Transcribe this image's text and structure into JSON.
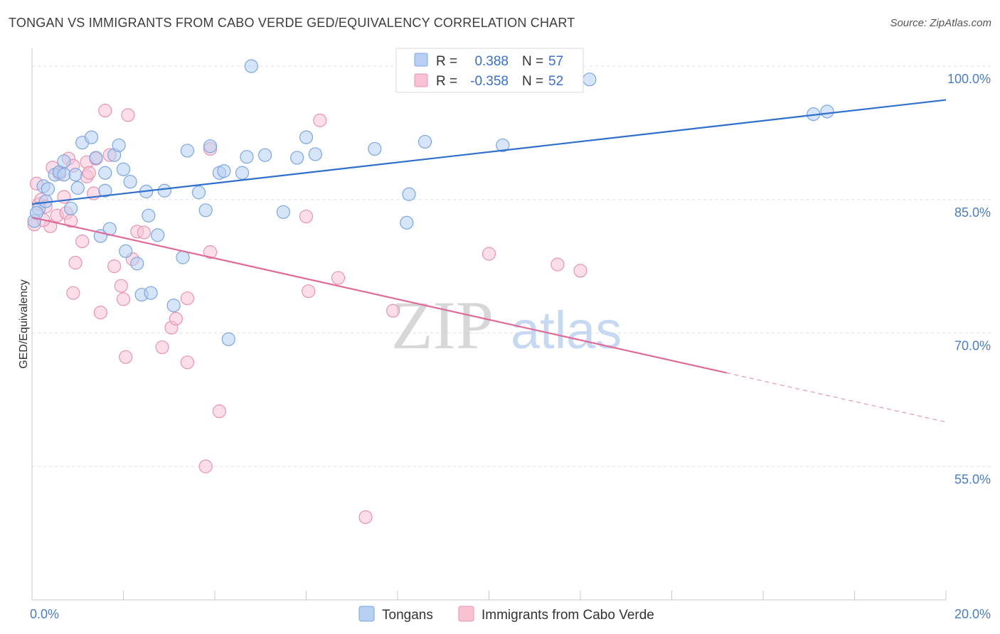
{
  "title": "TONGAN VS IMMIGRANTS FROM CABO VERDE GED/EQUIVALENCY CORRELATION CHART",
  "source": "Source: ZipAtlas.com",
  "watermark": {
    "zip": "ZIP",
    "atlas": "atlas"
  },
  "colors": {
    "blue_fill": "#b7d0f3",
    "blue_stroke": "#7aa6e3",
    "blue_line": "#2f6fcd",
    "pink_fill": "#f8c2d3",
    "pink_stroke": "#ea93b0",
    "pink_line": "#e06a98",
    "grid": "#e3e3e3",
    "tick_text": "#4a7cc9"
  },
  "stats_legend": [
    {
      "series": "Tongans",
      "r_label": "R =",
      "r_value": "0.388",
      "n_label": "N =",
      "n_value": "57"
    },
    {
      "series": "Immigrants from Cabo Verde",
      "r_label": "R =",
      "r_value": "-0.358",
      "n_label": "N =",
      "n_value": "52"
    }
  ],
  "chart_data": {
    "type": "scatter",
    "xlabel": "",
    "ylabel": "GED/Equivalency",
    "xlim": [
      0,
      20
    ],
    "ylim": [
      40,
      102
    ],
    "x_tick_labels": [
      {
        "value": 0,
        "label": "0.0%"
      },
      {
        "value": 20,
        "label": "20.0%"
      }
    ],
    "y_tick_labels": [
      {
        "value": 100,
        "label": "100.0%"
      },
      {
        "value": 85,
        "label": "85.0%"
      },
      {
        "value": 70,
        "label": "70.0%"
      },
      {
        "value": 55,
        "label": "55.0%"
      }
    ],
    "y_gridlines": [
      100,
      85,
      70,
      55
    ],
    "legend_position": "bottom-center",
    "series": [
      {
        "name": "Tongans",
        "color": "#b7d0f3",
        "trendline": {
          "x": [
            0,
            20
          ],
          "y": [
            84.5,
            96.2
          ],
          "dashed_from": null
        },
        "points": [
          [
            0.05,
            82.6
          ],
          [
            0.15,
            84.0
          ],
          [
            0.25,
            86.5
          ],
          [
            0.3,
            84.8
          ],
          [
            0.35,
            86.2
          ],
          [
            0.5,
            87.8
          ],
          [
            0.6,
            88.1
          ],
          [
            0.7,
            89.3
          ],
          [
            0.7,
            87.8
          ],
          [
            0.85,
            84.0
          ],
          [
            0.95,
            87.8
          ],
          [
            1.0,
            86.3
          ],
          [
            1.1,
            91.4
          ],
          [
            1.3,
            92.0
          ],
          [
            1.4,
            89.7
          ],
          [
            1.5,
            80.9
          ],
          [
            1.6,
            86.0
          ],
          [
            1.6,
            88.0
          ],
          [
            1.7,
            81.7
          ],
          [
            1.8,
            90.0
          ],
          [
            1.9,
            91.1
          ],
          [
            2.0,
            88.4
          ],
          [
            2.05,
            79.2
          ],
          [
            2.15,
            87.0
          ],
          [
            2.3,
            77.8
          ],
          [
            2.4,
            74.3
          ],
          [
            2.5,
            85.9
          ],
          [
            2.55,
            83.2
          ],
          [
            2.6,
            74.5
          ],
          [
            2.75,
            81.0
          ],
          [
            2.9,
            86.0
          ],
          [
            3.1,
            73.1
          ],
          [
            3.3,
            78.5
          ],
          [
            3.4,
            90.5
          ],
          [
            3.65,
            85.8
          ],
          [
            3.8,
            83.8
          ],
          [
            3.9,
            91.0
          ],
          [
            4.1,
            88.0
          ],
          [
            4.2,
            88.2
          ],
          [
            4.3,
            69.3
          ],
          [
            4.6,
            88.0
          ],
          [
            4.7,
            89.8
          ],
          [
            4.8,
            100.0
          ],
          [
            5.1,
            90.0
          ],
          [
            5.5,
            83.6
          ],
          [
            5.8,
            89.7
          ],
          [
            6.0,
            92.0
          ],
          [
            6.2,
            90.1
          ],
          [
            7.5,
            90.7
          ],
          [
            8.2,
            82.4
          ],
          [
            8.25,
            85.6
          ],
          [
            8.6,
            91.5
          ],
          [
            10.3,
            91.1
          ],
          [
            12.2,
            98.5
          ],
          [
            17.1,
            94.6
          ],
          [
            17.4,
            94.9
          ],
          [
            0.1,
            83.5
          ]
        ]
      },
      {
        "name": "Immigrants from Cabo Verde",
        "color": "#f8c2d3",
        "trendline": {
          "x": [
            0,
            20
          ],
          "y": [
            83.0,
            60.0
          ],
          "dashed_from": 15.2
        },
        "points": [
          [
            0.05,
            82.2
          ],
          [
            0.1,
            86.8
          ],
          [
            0.15,
            84.5
          ],
          [
            0.2,
            85.0
          ],
          [
            0.3,
            84.2
          ],
          [
            0.4,
            82.0
          ],
          [
            0.45,
            88.6
          ],
          [
            0.55,
            83.2
          ],
          [
            0.6,
            87.9
          ],
          [
            0.7,
            85.3
          ],
          [
            0.75,
            83.5
          ],
          [
            0.8,
            89.6
          ],
          [
            0.85,
            82.6
          ],
          [
            0.9,
            88.8
          ],
          [
            0.9,
            74.5
          ],
          [
            0.95,
            77.9
          ],
          [
            1.1,
            80.3
          ],
          [
            1.2,
            87.6
          ],
          [
            1.2,
            89.2
          ],
          [
            1.25,
            88.0
          ],
          [
            1.35,
            85.7
          ],
          [
            1.4,
            89.6
          ],
          [
            1.5,
            72.3
          ],
          [
            1.6,
            95.0
          ],
          [
            1.7,
            90.0
          ],
          [
            1.8,
            77.5
          ],
          [
            1.95,
            75.3
          ],
          [
            2.0,
            73.8
          ],
          [
            2.05,
            67.3
          ],
          [
            2.1,
            94.5
          ],
          [
            2.2,
            78.3
          ],
          [
            2.3,
            81.4
          ],
          [
            2.45,
            81.3
          ],
          [
            2.85,
            68.4
          ],
          [
            3.05,
            70.6
          ],
          [
            3.15,
            71.6
          ],
          [
            3.4,
            73.9
          ],
          [
            3.4,
            66.7
          ],
          [
            3.8,
            55.0
          ],
          [
            3.9,
            79.1
          ],
          [
            3.9,
            90.7
          ],
          [
            4.1,
            61.2
          ],
          [
            6.0,
            83.1
          ],
          [
            6.05,
            74.7
          ],
          [
            6.3,
            93.9
          ],
          [
            6.7,
            76.2
          ],
          [
            7.3,
            49.3
          ],
          [
            7.9,
            72.5
          ],
          [
            10.0,
            78.9
          ],
          [
            11.5,
            77.7
          ],
          [
            12.0,
            77.0
          ],
          [
            0.25,
            82.7
          ]
        ]
      }
    ]
  },
  "bottom_legend": [
    {
      "label": "Tongans",
      "color": "#b7d0f3"
    },
    {
      "label": "Immigrants from Cabo Verde",
      "color": "#f8c2d3"
    }
  ]
}
